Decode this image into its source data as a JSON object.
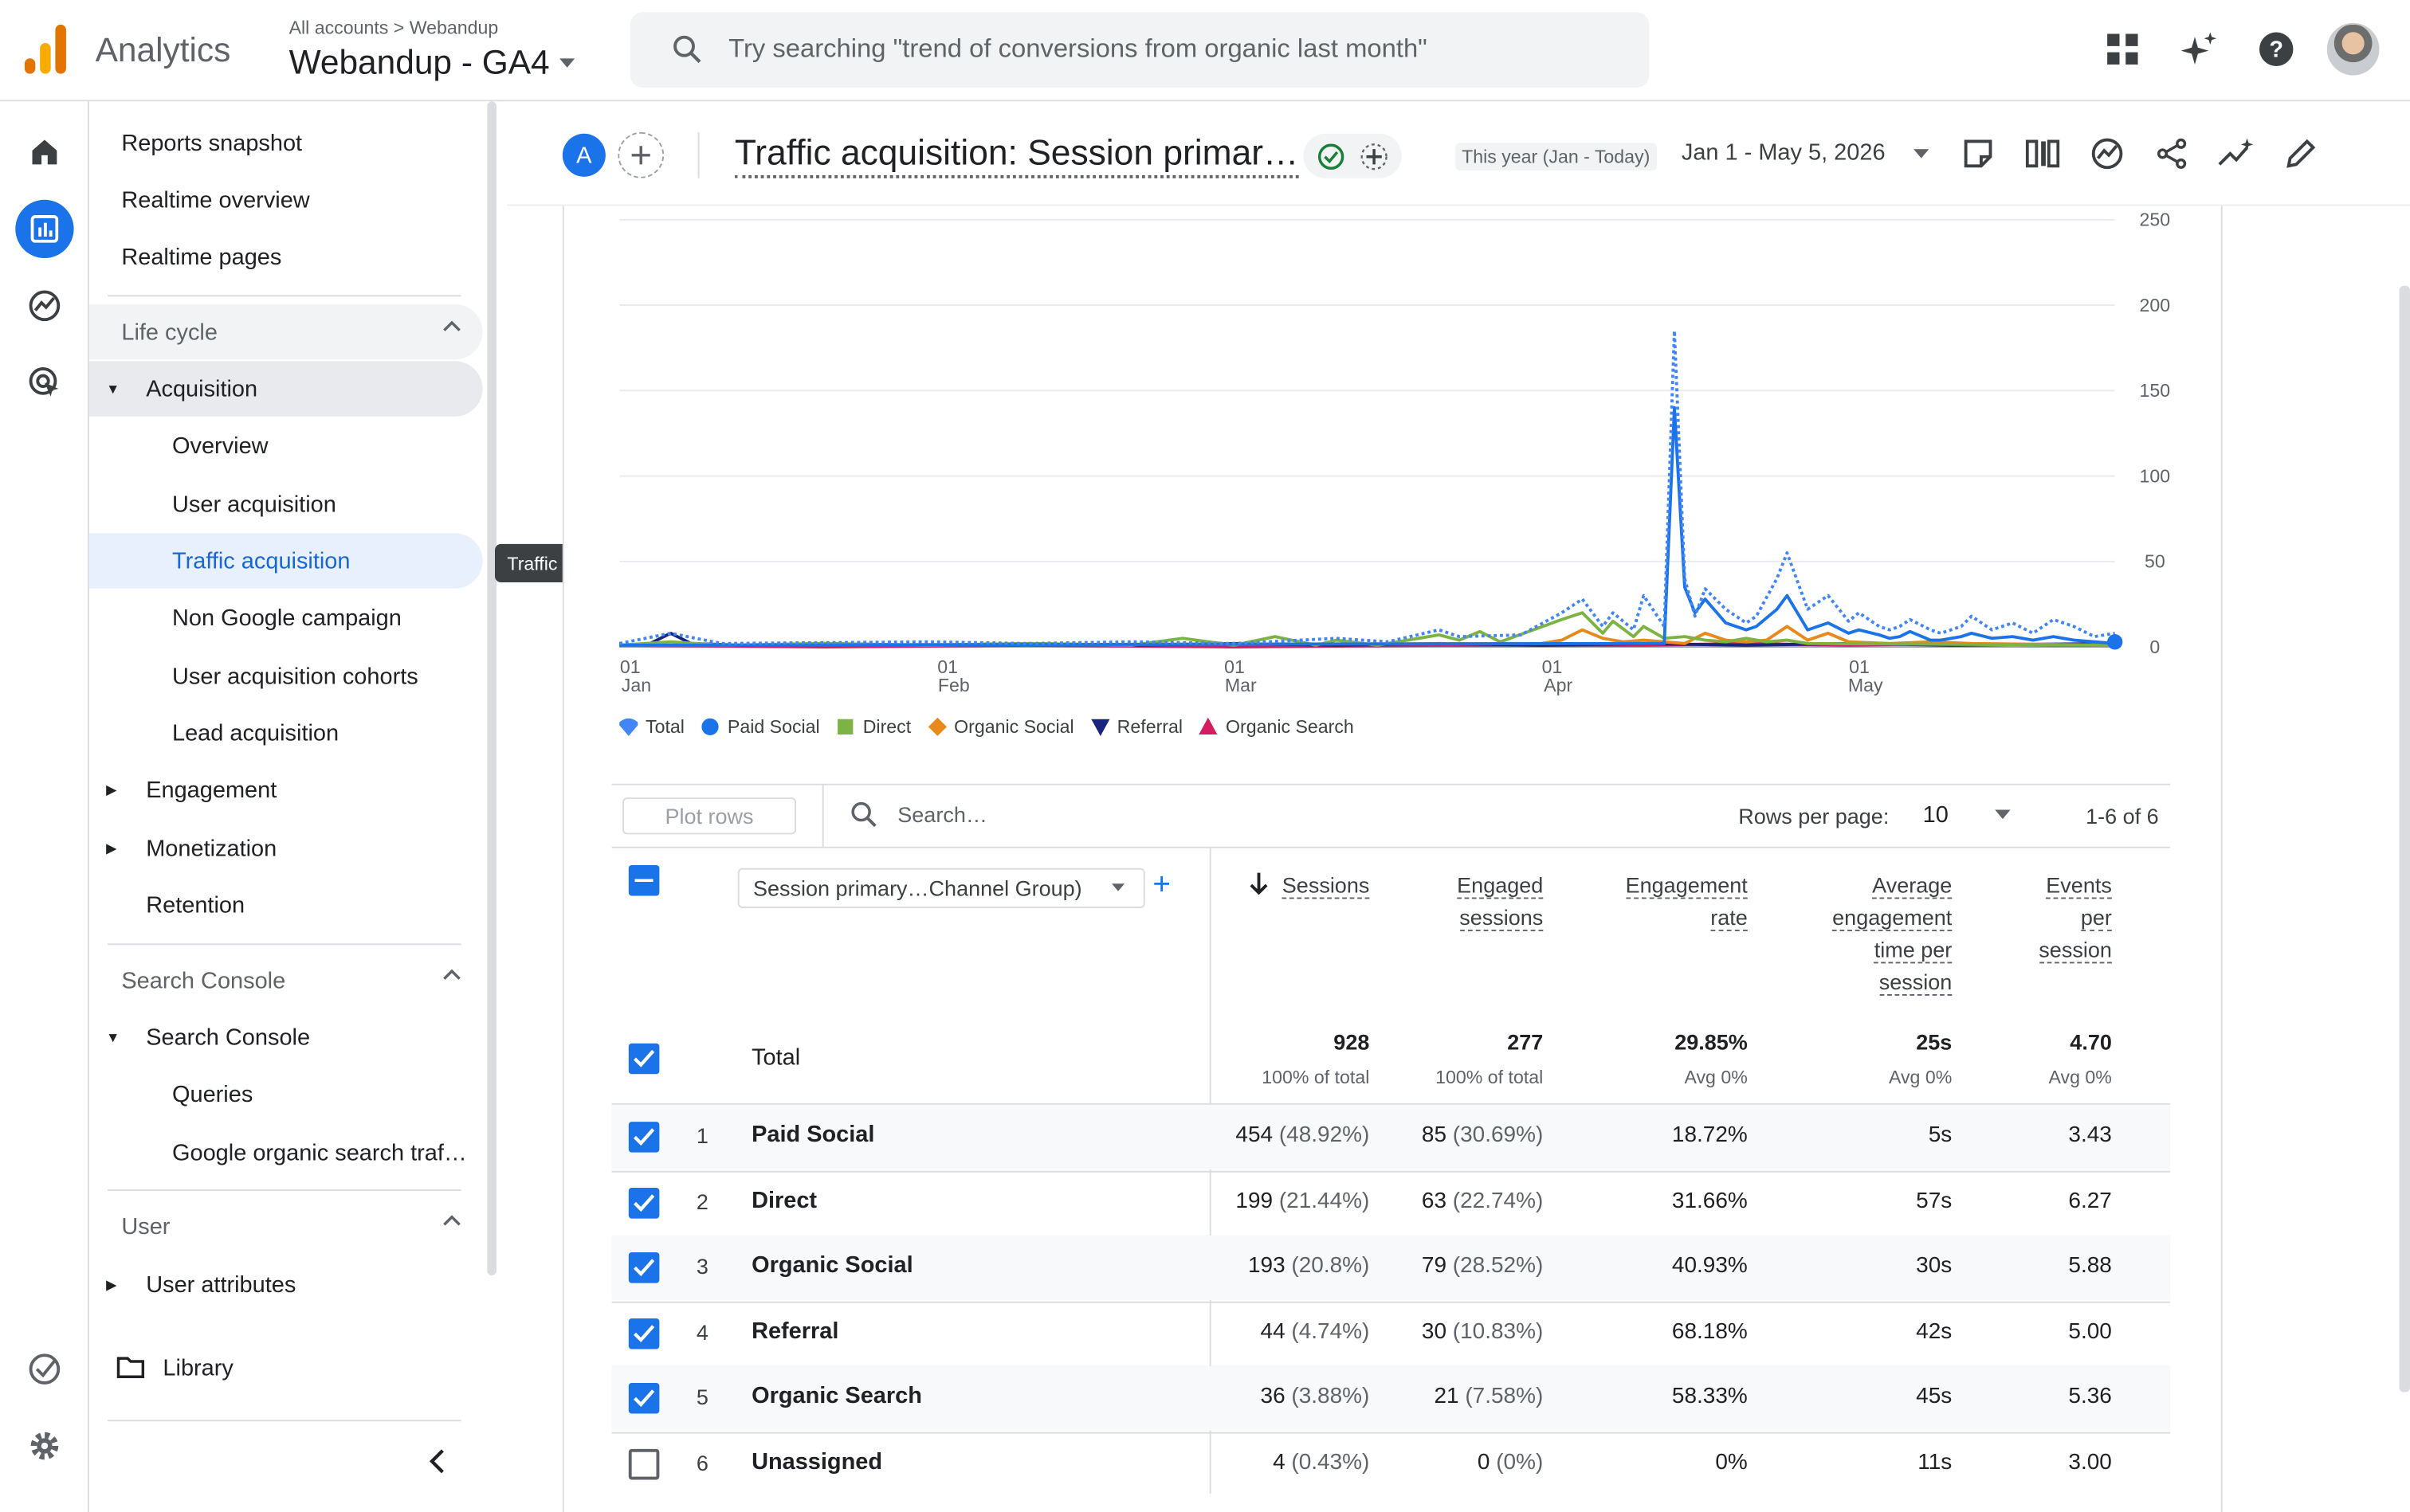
{
  "app": {
    "name": "Analytics",
    "breadcrumb_root": "All accounts",
    "breadcrumb_account": "Webandup",
    "property": "Webandup - GA4",
    "search_placeholder": "Try searching \"trend of conversions from organic last month\""
  },
  "rail": [
    "home-icon",
    "reports-icon",
    "explore-icon",
    "advertising-icon",
    "checklist-icon",
    "settings-icon"
  ],
  "nav": {
    "reports_snapshot": "Reports snapshot",
    "realtime_overview": "Realtime overview",
    "realtime_pages": "Realtime pages",
    "lifecycle": "Life cycle",
    "acquisition": "Acquisition",
    "overview": "Overview",
    "user_acquisition": "User acquisition",
    "traffic_acquisition": "Traffic acquisition",
    "non_google_campaign": "Non Google campaign",
    "user_acq_cohorts": "User acquisition cohorts",
    "lead_acquisition": "Lead acquisition",
    "engagement": "Engagement",
    "monetization": "Monetization",
    "retention": "Retention",
    "search_console_section": "Search Console",
    "search_console": "Search Console",
    "queries": "Queries",
    "google_organic": "Google organic search traf…",
    "user_section": "User",
    "user_attributes": "User attributes",
    "library": "Library",
    "tooltip": "Traffic acquisition"
  },
  "header": {
    "comparison_badge": "A",
    "title": "Traffic acquisition: Session primar…",
    "date_label": "This year (Jan - Today)",
    "date_range": "Jan 1 - May 5, 2026"
  },
  "chart_data": {
    "type": "line",
    "x_ticks": [
      {
        "day": "01",
        "month": "Jan"
      },
      {
        "day": "01",
        "month": "Feb"
      },
      {
        "day": "01",
        "month": "Mar"
      },
      {
        "day": "01",
        "month": "Apr"
      },
      {
        "day": "01",
        "month": "May"
      }
    ],
    "y_ticks": [
      "250",
      "200",
      "150",
      "100",
      "50",
      "0"
    ],
    "ylim": [
      0,
      250
    ],
    "days": 125,
    "series": [
      {
        "name": "Total",
        "color": "#4285f4",
        "dotted": true,
        "points": [
          [
            0,
            2
          ],
          [
            5,
            8
          ],
          [
            10,
            2
          ],
          [
            30,
            3
          ],
          [
            40,
            2
          ],
          [
            50,
            3
          ],
          [
            60,
            2
          ],
          [
            70,
            5
          ],
          [
            75,
            3
          ],
          [
            80,
            10
          ],
          [
            82,
            6
          ],
          [
            88,
            7
          ],
          [
            92,
            20
          ],
          [
            94,
            28
          ],
          [
            96,
            12
          ],
          [
            97,
            20
          ],
          [
            99,
            10
          ],
          [
            100,
            30
          ],
          [
            102,
            12
          ],
          [
            103,
            185
          ],
          [
            104,
            40
          ],
          [
            105,
            18
          ],
          [
            106,
            34
          ],
          [
            108,
            22
          ],
          [
            110,
            14
          ],
          [
            111,
            18
          ],
          [
            113,
            40
          ],
          [
            114,
            55
          ],
          [
            116,
            22
          ],
          [
            118,
            30
          ],
          [
            120,
            15
          ],
          [
            121,
            20
          ],
          [
            123,
            12
          ],
          [
            124,
            10
          ],
          [
            125,
            12
          ],
          [
            126,
            16
          ],
          [
            128,
            10
          ],
          [
            129,
            8
          ],
          [
            131,
            12
          ],
          [
            132,
            18
          ],
          [
            134,
            10
          ],
          [
            136,
            14
          ],
          [
            138,
            8
          ],
          [
            140,
            16
          ],
          [
            142,
            12
          ],
          [
            144,
            6
          ],
          [
            146,
            8
          ]
        ]
      },
      {
        "name": "Paid Social",
        "color": "#1a73e8",
        "dotted": false,
        "points": [
          [
            0,
            1
          ],
          [
            100,
            2
          ],
          [
            102,
            2
          ],
          [
            103,
            140
          ],
          [
            104,
            35
          ],
          [
            105,
            20
          ],
          [
            106,
            28
          ],
          [
            108,
            14
          ],
          [
            110,
            10
          ],
          [
            111,
            12
          ],
          [
            113,
            22
          ],
          [
            114,
            30
          ],
          [
            116,
            10
          ],
          [
            118,
            14
          ],
          [
            120,
            8
          ],
          [
            121,
            10
          ],
          [
            123,
            7
          ],
          [
            124,
            5
          ],
          [
            125,
            6
          ],
          [
            126,
            9
          ],
          [
            128,
            4
          ],
          [
            129,
            4
          ],
          [
            131,
            6
          ],
          [
            132,
            8
          ],
          [
            134,
            5
          ],
          [
            136,
            6
          ],
          [
            138,
            4
          ],
          [
            140,
            6
          ],
          [
            142,
            4
          ],
          [
            144,
            3
          ],
          [
            146,
            2
          ]
        ]
      },
      {
        "name": "Direct",
        "color": "#7cb342",
        "dotted": false,
        "points": [
          [
            0,
            1
          ],
          [
            5,
            3
          ],
          [
            10,
            1
          ],
          [
            20,
            2
          ],
          [
            30,
            1
          ],
          [
            40,
            2
          ],
          [
            50,
            1
          ],
          [
            55,
            5
          ],
          [
            60,
            1
          ],
          [
            64,
            6
          ],
          [
            68,
            1
          ],
          [
            70,
            4
          ],
          [
            74,
            1
          ],
          [
            80,
            7
          ],
          [
            82,
            4
          ],
          [
            84,
            9
          ],
          [
            86,
            3
          ],
          [
            92,
            16
          ],
          [
            94,
            20
          ],
          [
            96,
            8
          ],
          [
            97,
            15
          ],
          [
            99,
            6
          ],
          [
            100,
            12
          ],
          [
            102,
            5
          ],
          [
            104,
            6
          ],
          [
            106,
            4
          ],
          [
            108,
            3
          ],
          [
            110,
            5
          ],
          [
            112,
            3
          ],
          [
            114,
            4
          ],
          [
            116,
            2
          ],
          [
            146,
            1
          ]
        ]
      },
      {
        "name": "Organic Social",
        "color": "#e8891a",
        "dotted": false,
        "points": [
          [
            0,
            1
          ],
          [
            90,
            2
          ],
          [
            92,
            4
          ],
          [
            94,
            10
          ],
          [
            96,
            5
          ],
          [
            98,
            3
          ],
          [
            100,
            4
          ],
          [
            102,
            3
          ],
          [
            104,
            2
          ],
          [
            106,
            8
          ],
          [
            108,
            4
          ],
          [
            110,
            3
          ],
          [
            112,
            4
          ],
          [
            114,
            12
          ],
          [
            116,
            4
          ],
          [
            118,
            8
          ],
          [
            120,
            3
          ],
          [
            124,
            2
          ],
          [
            128,
            3
          ],
          [
            132,
            2
          ],
          [
            146,
            1
          ]
        ]
      },
      {
        "name": "Referral",
        "color": "#1a237e",
        "dotted": false,
        "points": [
          [
            0,
            1
          ],
          [
            3,
            2
          ],
          [
            5,
            8
          ],
          [
            7,
            2
          ],
          [
            12,
            1
          ],
          [
            20,
            2
          ],
          [
            30,
            1
          ],
          [
            40,
            2
          ],
          [
            50,
            1
          ],
          [
            60,
            2
          ],
          [
            70,
            1
          ],
          [
            80,
            2
          ],
          [
            90,
            1
          ],
          [
            100,
            2
          ],
          [
            110,
            1
          ],
          [
            120,
            2
          ],
          [
            130,
            1
          ],
          [
            146,
            2
          ]
        ]
      },
      {
        "name": "Organic Search",
        "color": "#d81b60",
        "dotted": false,
        "points": [
          [
            0,
            1
          ],
          [
            20,
            0
          ],
          [
            40,
            1
          ],
          [
            60,
            0
          ],
          [
            80,
            1
          ],
          [
            100,
            1
          ],
          [
            110,
            2
          ],
          [
            120,
            1
          ],
          [
            130,
            2
          ],
          [
            140,
            1
          ],
          [
            146,
            1
          ]
        ]
      }
    ],
    "tick_day_index": [
      0,
      31,
      59,
      90,
      120
    ]
  },
  "table": {
    "plot_rows": "Plot rows",
    "search_placeholder": "Search…",
    "rows_per_page_label": "Rows per page:",
    "rows_per_page": "10",
    "pager": "1-6 of 6",
    "dimension": "Session primary…Channel Group)",
    "columns": [
      {
        "key": "sessions",
        "lines": [
          "Sessions"
        ]
      },
      {
        "key": "engaged",
        "lines": [
          "Engaged",
          "sessions"
        ]
      },
      {
        "key": "rate",
        "lines": [
          "Engagement",
          "rate"
        ]
      },
      {
        "key": "avg_time",
        "lines": [
          "Average",
          "engagement",
          "time per",
          "session"
        ]
      },
      {
        "key": "events",
        "lines": [
          "Events",
          "per",
          "session"
        ]
      }
    ],
    "total": {
      "label": "Total",
      "sessions": "928",
      "sessions_sub": "100% of total",
      "engaged": "277",
      "engaged_sub": "100% of total",
      "rate": "29.85%",
      "rate_sub": "Avg 0%",
      "avg_time": "25s",
      "avg_time_sub": "Avg 0%",
      "events": "4.70",
      "events_sub": "Avg 0%"
    },
    "rows": [
      {
        "num": "1",
        "name": "Paid Social",
        "sessions": "454",
        "sessions_pct": "(48.92%)",
        "engaged": "85",
        "engaged_pct": "(30.69%)",
        "rate": "18.72%",
        "avg_time": "5s",
        "events": "3.43",
        "checked": true
      },
      {
        "num": "2",
        "name": "Direct",
        "sessions": "199",
        "sessions_pct": "(21.44%)",
        "engaged": "63",
        "engaged_pct": "(22.74%)",
        "rate": "31.66%",
        "avg_time": "57s",
        "events": "6.27",
        "checked": true
      },
      {
        "num": "3",
        "name": "Organic Social",
        "sessions": "193",
        "sessions_pct": "(20.8%)",
        "engaged": "79",
        "engaged_pct": "(28.52%)",
        "rate": "40.93%",
        "avg_time": "30s",
        "events": "5.88",
        "checked": true
      },
      {
        "num": "4",
        "name": "Referral",
        "sessions": "44",
        "sessions_pct": "(4.74%)",
        "engaged": "30",
        "engaged_pct": "(10.83%)",
        "rate": "68.18%",
        "avg_time": "42s",
        "events": "5.00",
        "checked": true
      },
      {
        "num": "5",
        "name": "Organic Search",
        "sessions": "36",
        "sessions_pct": "(3.88%)",
        "engaged": "21",
        "engaged_pct": "(7.58%)",
        "rate": "58.33%",
        "avg_time": "45s",
        "events": "5.36",
        "checked": true
      },
      {
        "num": "6",
        "name": "Unassigned",
        "sessions": "4",
        "sessions_pct": "(0.43%)",
        "engaged": "0",
        "engaged_pct": "(0%)",
        "rate": "0%",
        "avg_time": "11s",
        "events": "3.00",
        "checked": false
      }
    ]
  }
}
